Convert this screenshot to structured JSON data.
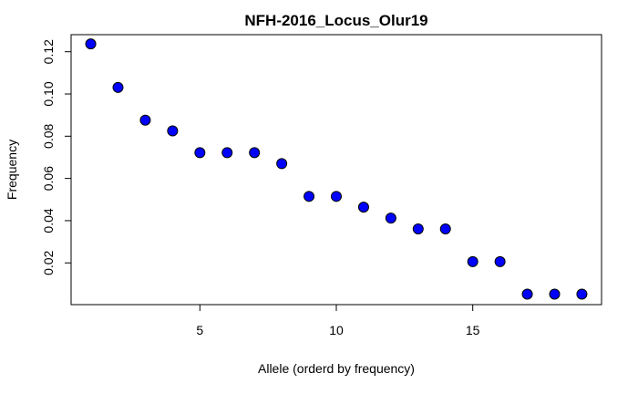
{
  "chart_data": {
    "type": "scatter",
    "title": "NFH-2016_Locus_Olur19",
    "xlabel": "Allele (orderd by frequency)",
    "ylabel": "Frequency",
    "xlim": [
      0.28,
      19.72
    ],
    "ylim": [
      0.00024,
      0.12808
    ],
    "xticks": [
      5,
      10,
      15
    ],
    "xtick_labels": [
      "5",
      "10",
      "15"
    ],
    "yticks": [
      0.02,
      0.04,
      0.06,
      0.08,
      0.1,
      0.12
    ],
    "ytick_labels": [
      "0.02",
      "0.04",
      "0.06",
      "0.08",
      "0.10",
      "0.12"
    ],
    "marker_fill": "#0000FF",
    "marker_edge": "#000000",
    "grid": false,
    "x": [
      1,
      2,
      3,
      4,
      5,
      6,
      7,
      8,
      9,
      10,
      11,
      12,
      13,
      14,
      15,
      16,
      17,
      18,
      19
    ],
    "y": [
      0.1237,
      0.1031,
      0.0876,
      0.0825,
      0.0722,
      0.0722,
      0.0722,
      0.067,
      0.0515,
      0.0515,
      0.0464,
      0.0412,
      0.0361,
      0.0361,
      0.0206,
      0.0206,
      0.0052,
      0.0052,
      0.0052
    ]
  }
}
